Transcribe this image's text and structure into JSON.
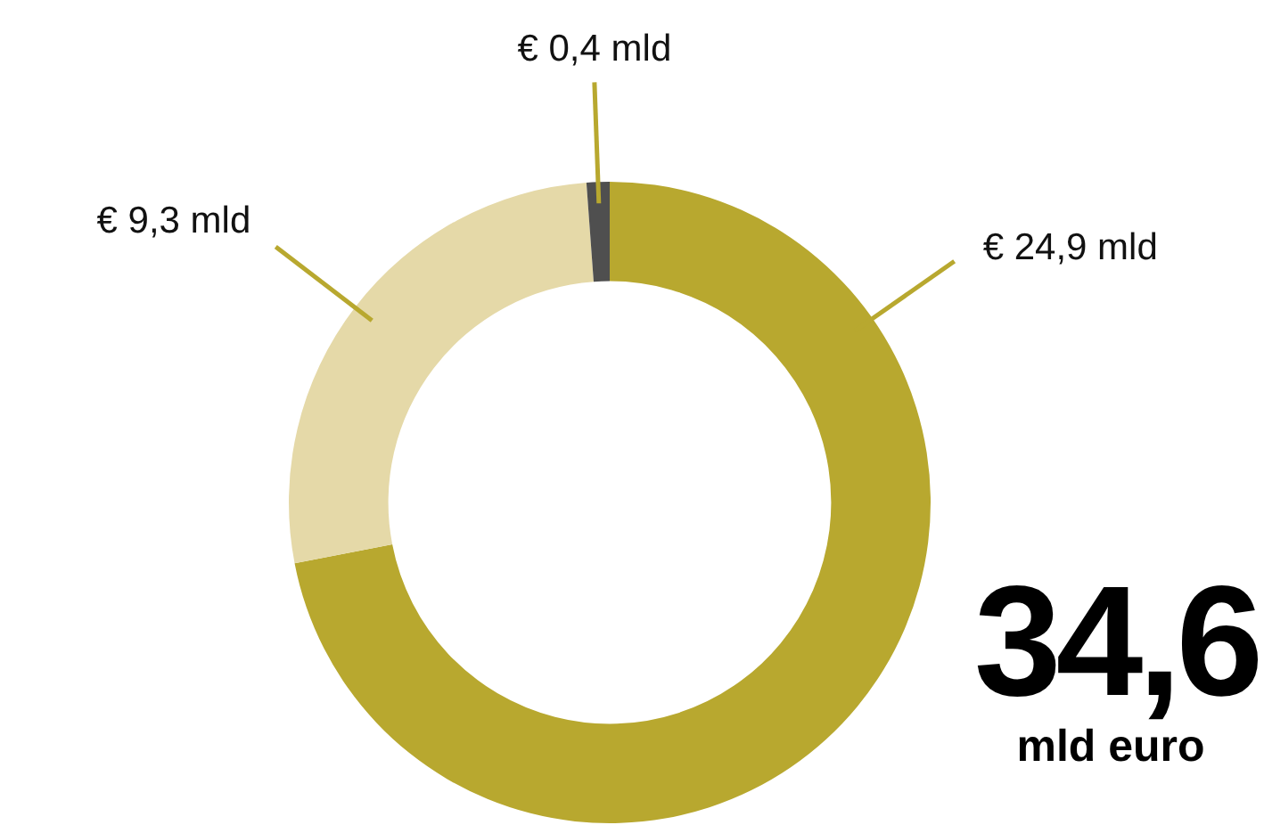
{
  "chart_data": {
    "type": "donut",
    "categories": [
      null,
      null,
      null
    ],
    "values": [
      24.9,
      9.3,
      0.4
    ],
    "colors": [
      "#b8a82f",
      "#e5d9a8",
      "#4f4f4f"
    ],
    "value_labels": [
      "€ 24,9 mld",
      "€ 9,3 mld",
      "€ 0,4 mld"
    ],
    "annotations": [
      "34,6",
      "mld euro"
    ]
  }
}
